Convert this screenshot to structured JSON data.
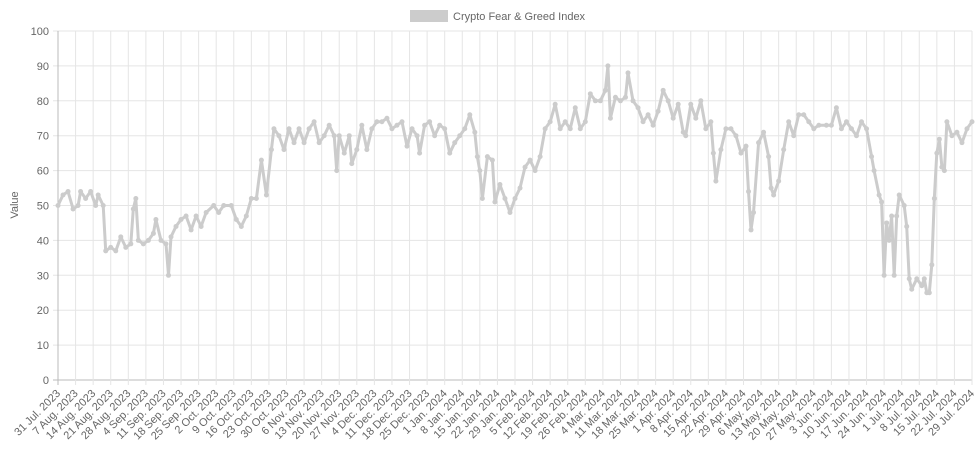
{
  "chart_data": {
    "type": "line",
    "y_label": "Value",
    "legend": "top",
    "grid": true,
    "ylim": [
      0,
      100
    ],
    "yticks": [
      0,
      10,
      20,
      30,
      40,
      50,
      60,
      70,
      80,
      90,
      100
    ],
    "xlim": [
      "31 Jul. 2023",
      "29 Jul. 2024"
    ],
    "xticks": [
      "31 Jul. 2023",
      "7 Aug. 2023",
      "14 Aug. 2023",
      "21 Aug. 2023",
      "28 Aug. 2023",
      "4 Sep. 2023",
      "11 Sep. 2023",
      "18 Sep. 2023",
      "25 Sep. 2023",
      "2 Oct. 2023",
      "9 Oct. 2023",
      "16 Oct. 2023",
      "23 Oct. 2023",
      "30 Oct. 2023",
      "6 Nov. 2023",
      "13 Nov. 2023",
      "20 Nov. 2023",
      "27 Nov. 2023",
      "4 Dec. 2023",
      "11 Dec. 2023",
      "18 Dec. 2023",
      "25 Dec. 2023",
      "1 Jan. 2024",
      "8 Jan. 2024",
      "15 Jan. 2024",
      "22 Jan. 2024",
      "29 Jan. 2024",
      "5 Feb. 2024",
      "12 Feb. 2024",
      "19 Feb. 2024",
      "26 Feb. 2024",
      "4 Mar. 2024",
      "11 Mar. 2024",
      "18 Mar. 2024",
      "25 Mar. 2024",
      "1 Apr. 2024",
      "8 Apr. 2024",
      "15 Apr. 2024",
      "22 Apr. 2024",
      "29 Apr. 2024",
      "6 May. 2024",
      "13 May. 2024",
      "20 May. 2024",
      "27 May. 2024",
      "3 Jun. 2024",
      "10 Jun. 2024",
      "17 Jun. 2024",
      "24 Jun. 2024",
      "1 Jul. 2024",
      "8 Jul. 2024",
      "15 Jul. 2024",
      "22 Jul. 2024",
      "29 Jul. 2024"
    ],
    "series": [
      {
        "name": "Crypto Fear & Greed Index",
        "color": "#cccccc",
        "x": [
          "31 Jul. 2023",
          "2 Aug. 2023",
          "4 Aug. 2023",
          "6 Aug. 2023",
          "8 Aug. 2023",
          "9 Aug. 2023",
          "11 Aug. 2023",
          "13 Aug. 2023",
          "15 Aug. 2023",
          "16 Aug. 2023",
          "18 Aug. 2023",
          "19 Aug. 2023",
          "21 Aug. 2023",
          "23 Aug. 2023",
          "25 Aug. 2023",
          "27 Aug. 2023",
          "29 Aug. 2023",
          "30 Aug. 2023",
          "31 Aug. 2023",
          "1 Sep. 2023",
          "3 Sep. 2023",
          "5 Sep. 2023",
          "7 Sep. 2023",
          "8 Sep. 2023",
          "10 Sep. 2023",
          "12 Sep. 2023",
          "13 Sep. 2023",
          "14 Sep. 2023",
          "16 Sep. 2023",
          "18 Sep. 2023",
          "20 Sep. 2023",
          "22 Sep. 2023",
          "24 Sep. 2023",
          "26 Sep. 2023",
          "28 Sep. 2023",
          "1 Oct. 2023",
          "3 Oct. 2023",
          "5 Oct. 2023",
          "8 Oct. 2023",
          "10 Oct. 2023",
          "12 Oct. 2023",
          "14 Oct. 2023",
          "16 Oct. 2023",
          "18 Oct. 2023",
          "20 Oct. 2023",
          "22 Oct. 2023",
          "24 Oct. 2023",
          "25 Oct. 2023",
          "27 Oct. 2023",
          "29 Oct. 2023",
          "31 Oct. 2023",
          "2 Nov. 2023",
          "4 Nov. 2023",
          "6 Nov. 2023",
          "8 Nov. 2023",
          "10 Nov. 2023",
          "12 Nov. 2023",
          "14 Nov. 2023",
          "16 Nov. 2023",
          "18 Nov. 2023",
          "19 Nov. 2023",
          "20 Nov. 2023",
          "22 Nov. 2023",
          "24 Nov. 2023",
          "25 Nov. 2023",
          "27 Nov. 2023",
          "29 Nov. 2023",
          "1 Dec. 2023",
          "3 Dec. 2023",
          "5 Dec. 2023",
          "7 Dec. 2023",
          "9 Dec. 2023",
          "11 Dec. 2023",
          "13 Dec. 2023",
          "15 Dec. 2023",
          "17 Dec. 2023",
          "19 Dec. 2023",
          "21 Dec. 2023",
          "22 Dec. 2023",
          "24 Dec. 2023",
          "26 Dec. 2023",
          "28 Dec. 2023",
          "30 Dec. 2023",
          "1 Jan. 2024",
          "3 Jan. 2024",
          "5 Jan. 2024",
          "7 Jan. 2024",
          "9 Jan. 2024",
          "11 Jan. 2024",
          "13 Jan. 2024",
          "14 Jan. 2024",
          "15 Jan. 2024",
          "16 Jan. 2024",
          "18 Jan. 2024",
          "20 Jan. 2024",
          "21 Jan. 2024",
          "23 Jan. 2024",
          "25 Jan. 2024",
          "27 Jan. 2024",
          "29 Jan. 2024",
          "31 Jan. 2024",
          "2 Feb. 2024",
          "4 Feb. 2024",
          "6 Feb. 2024",
          "8 Feb. 2024",
          "10 Feb. 2024",
          "12 Feb. 2024",
          "14 Feb. 2024",
          "16 Feb. 2024",
          "18 Feb. 2024",
          "20 Feb. 2024",
          "22 Feb. 2024",
          "24 Feb. 2024",
          "26 Feb. 2024",
          "28 Feb. 2024",
          "1 Mar. 2024",
          "3 Mar. 2024",
          "5 Mar. 2024",
          "6 Mar. 2024",
          "7 Mar. 2024",
          "9 Mar. 2024",
          "11 Mar. 2024",
          "13 Mar. 2024",
          "14 Mar. 2024",
          "16 Mar. 2024",
          "18 Mar. 2024",
          "20 Mar. 2024",
          "22 Mar. 2024",
          "24 Mar. 2024",
          "26 Mar. 2024",
          "28 Mar. 2024",
          "30 Mar. 2024",
          "1 Apr. 2024",
          "3 Apr. 2024",
          "5 Apr. 2024",
          "6 Apr. 2024",
          "8 Apr. 2024",
          "10 Apr. 2024",
          "12 Apr. 2024",
          "14 Apr. 2024",
          "16 Apr. 2024",
          "17 Apr. 2024",
          "18 Apr. 2024",
          "20 Apr. 2024",
          "22 Apr. 2024",
          "24 Apr. 2024",
          "26 Apr. 2024",
          "28 Apr. 2024",
          "30 Apr. 2024",
          "1 May. 2024",
          "2 May. 2024",
          "3 May. 2024",
          "5 May. 2024",
          "7 May. 2024",
          "9 May. 2024",
          "10 May. 2024",
          "11 May. 2024",
          "13 May. 2024",
          "15 May. 2024",
          "17 May. 2024",
          "19 May. 2024",
          "21 May. 2024",
          "23 May. 2024",
          "25 May. 2024",
          "27 May. 2024",
          "29 May. 2024",
          "1 Jun. 2024",
          "3 Jun. 2024",
          "5 Jun. 2024",
          "7 Jun. 2024",
          "9 Jun. 2024",
          "11 Jun. 2024",
          "13 Jun. 2024",
          "15 Jun. 2024",
          "17 Jun. 2024",
          "19 Jun. 2024",
          "20 Jun. 2024",
          "22 Jun. 2024",
          "23 Jun. 2024",
          "24 Jun. 2024",
          "25 Jun. 2024",
          "26 Jun. 2024",
          "27 Jun. 2024",
          "28 Jun. 2024",
          "29 Jun. 2024",
          "30 Jun. 2024",
          "2 Jul. 2024",
          "3 Jul. 2024",
          "4 Jul. 2024",
          "5 Jul. 2024",
          "7 Jul. 2024",
          "9 Jul. 2024",
          "10 Jul. 2024",
          "11 Jul. 2024",
          "12 Jul. 2024",
          "13 Jul. 2024",
          "14 Jul. 2024",
          "15 Jul. 2024",
          "16 Jul. 2024",
          "17 Jul. 2024",
          "18 Jul. 2024",
          "19 Jul. 2024",
          "21 Jul. 2024",
          "23 Jul. 2024",
          "25 Jul. 2024",
          "27 Jul. 2024",
          "29 Jul. 2024"
        ],
        "values": [
          50,
          53,
          54,
          49,
          50,
          54,
          52,
          54,
          50,
          53,
          50,
          37,
          38,
          37,
          41,
          38,
          39,
          49,
          52,
          40,
          39,
          40,
          42,
          46,
          40,
          39,
          30,
          41,
          44,
          46,
          47,
          43,
          47,
          44,
          48,
          50,
          48,
          50,
          50,
          46,
          44,
          47,
          52,
          52,
          63,
          53,
          66,
          72,
          70,
          66,
          72,
          68,
          72,
          68,
          72,
          74,
          68,
          70,
          73,
          70,
          60,
          70,
          65,
          70,
          62,
          66,
          73,
          66,
          72,
          74,
          74,
          75,
          72,
          73,
          74,
          67,
          72,
          70,
          65,
          73,
          74,
          70,
          73,
          72,
          65,
          68,
          70,
          72,
          76,
          71,
          64,
          60,
          52,
          64,
          63,
          51,
          56,
          52,
          48,
          52,
          55,
          61,
          63,
          60,
          64,
          72,
          74,
          79,
          72,
          74,
          72,
          78,
          72,
          74,
          82,
          80,
          80,
          83,
          90,
          75,
          81,
          80,
          81,
          88,
          80,
          78,
          74,
          76,
          73,
          77,
          83,
          80,
          75,
          79,
          71,
          70,
          79,
          75,
          80,
          72,
          74,
          65,
          57,
          66,
          72,
          72,
          70,
          65,
          67,
          54,
          43,
          48,
          68,
          71,
          64,
          55,
          53,
          57,
          66,
          74,
          70,
          76,
          76,
          74,
          72,
          73,
          73,
          73,
          78,
          72,
          74,
          72,
          70,
          74,
          72,
          64,
          60,
          53,
          51,
          30,
          45,
          40,
          47,
          30,
          47,
          53,
          50,
          44,
          29,
          26,
          29,
          27,
          29,
          25,
          25,
          33,
          52,
          65,
          69,
          61,
          60,
          74,
          70,
          71,
          68,
          72,
          74
        ]
      }
    ]
  }
}
